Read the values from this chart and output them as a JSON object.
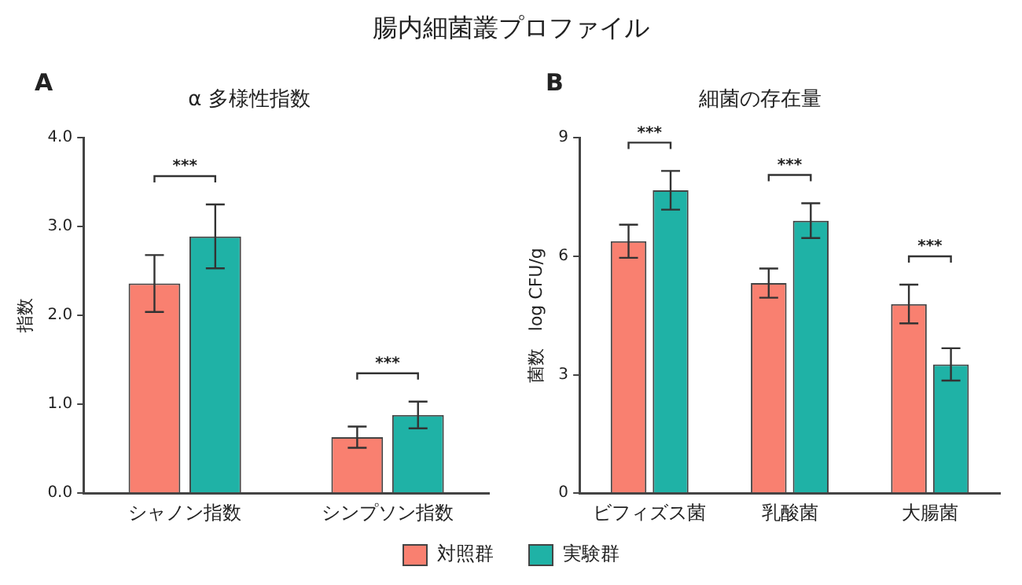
{
  "chart_data": [
    {
      "type": "bar",
      "title": "腸内細菌叢プロファイル",
      "subtitle": "α 多様性指数",
      "ylabel": "指数",
      "categories": [
        "シャノン指数",
        "シンプソン指数"
      ],
      "series": [
        {
          "color": "#f98070",
          "values": [
            2.36,
            0.63
          ],
          "errors": [
            0.32,
            0.12
          ]
        },
        {
          "color": "#1fb2a6",
          "values": [
            2.89,
            0.88
          ],
          "errors": [
            0.36,
            0.15
          ]
        }
      ],
      "ylim": [
        0,
        4
      ],
      "yticks": [
        {
          "value": 0,
          "label": "0.0"
        },
        {
          "value": 1,
          "label": "1.0"
        },
        {
          "value": 2,
          "label": "2.0"
        },
        {
          "value": 3,
          "label": "3.0"
        },
        {
          "value": 4,
          "label": "4.0"
        }
      ],
      "grid": false,
      "annotations": [
        "A",
        "***",
        "***"
      ]
    },
    {
      "type": "bar",
      "subtitle": "細菌の存在量",
      "ylabel": "菌数　log CFU/g",
      "categories": [
        "ビフィズス菌",
        "乳酸菌",
        "大腸菌"
      ],
      "series": [
        {
          "name": "対照群",
          "color": "#f98070",
          "values": [
            6.38,
            5.32,
            4.79
          ],
          "errors": [
            0.42,
            0.37,
            0.49
          ]
        },
        {
          "name": "実験群",
          "color": "#1fb2a6",
          "values": [
            7.67,
            6.9,
            3.26
          ],
          "errors": [
            0.49,
            0.44,
            0.41
          ]
        }
      ],
      "ylim": [
        0,
        9
      ],
      "yticks": [
        0,
        3,
        6,
        9
      ],
      "grid": false,
      "legend": "bottom",
      "annotations": [
        "B",
        "***",
        "***",
        "***"
      ]
    }
  ]
}
